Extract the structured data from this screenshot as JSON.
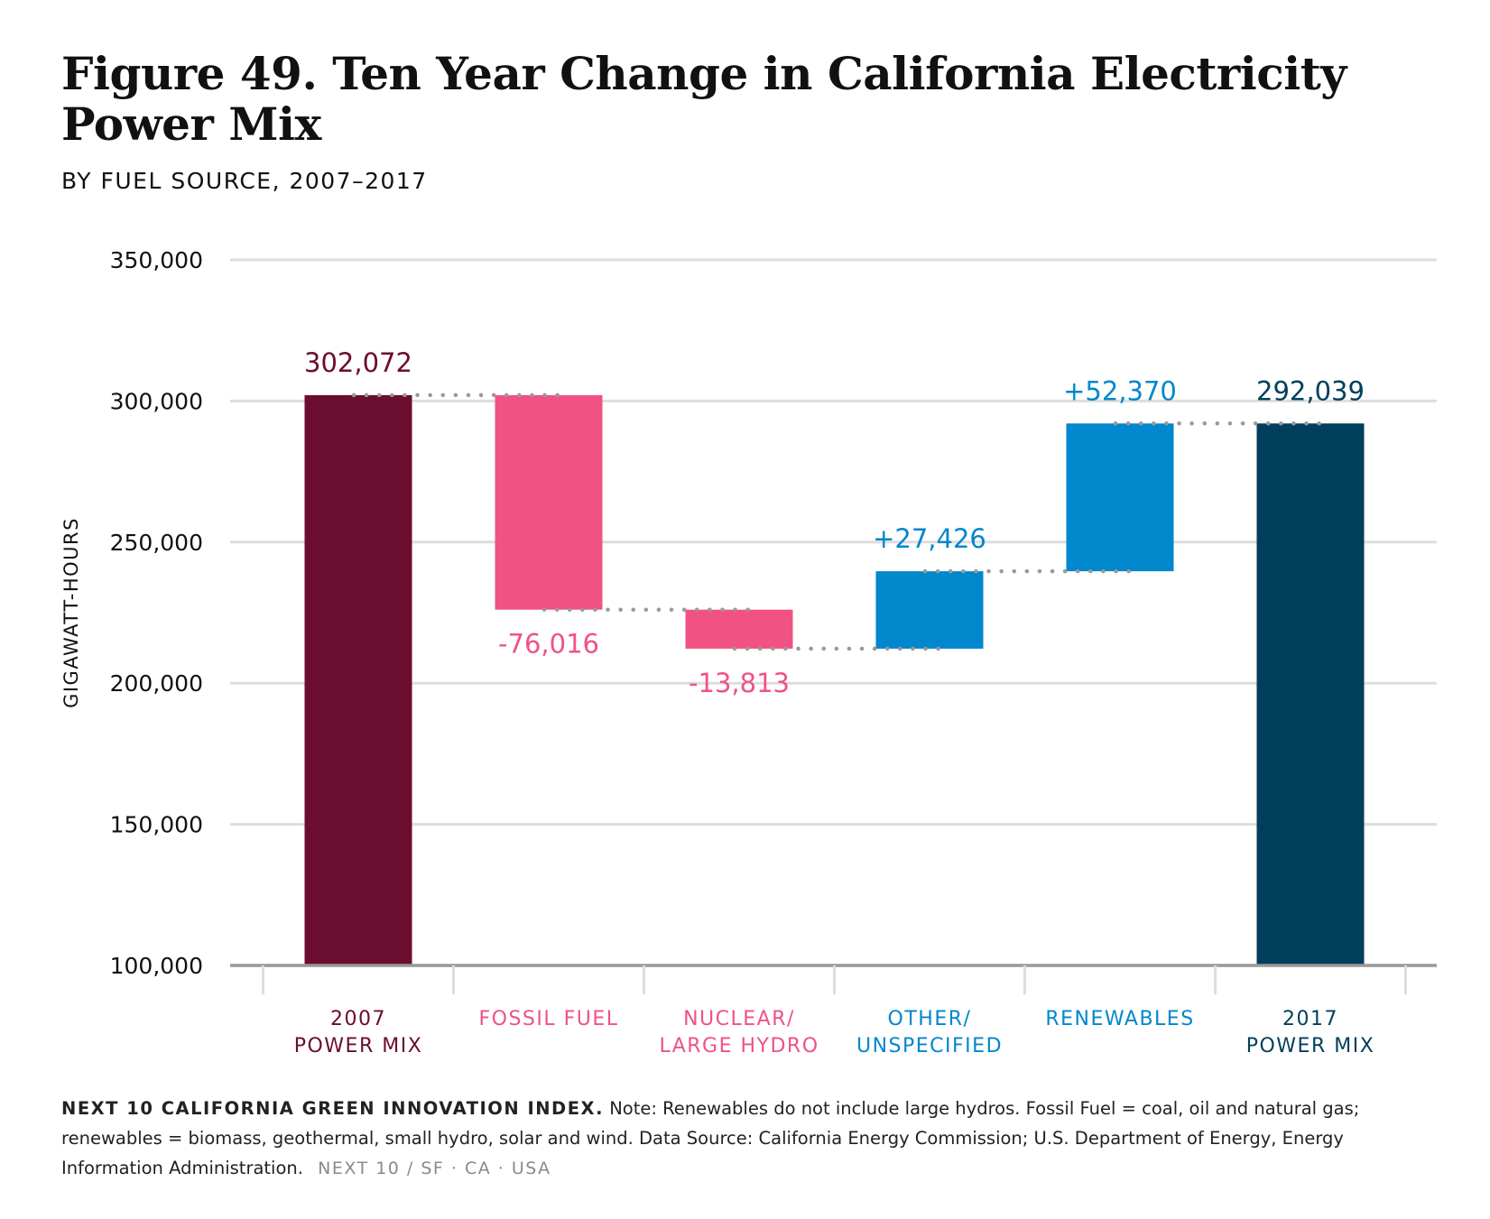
{
  "header": {
    "title": "Figure 49. Ten Year Change in California Electricity Power Mix",
    "subtitle": "BY FUEL SOURCE, 2007–2017"
  },
  "chart_data": {
    "type": "waterfall",
    "ylabel": "GIGAWATT-HOURS",
    "ylim": [
      100000,
      350000
    ],
    "yticks": [
      100000,
      150000,
      200000,
      250000,
      300000,
      350000
    ],
    "ytick_labels": [
      "100,000",
      "150,000",
      "200,000",
      "250,000",
      "300,000",
      "350,000"
    ],
    "grid": true,
    "categories": [
      {
        "label_lines": [
          "2007",
          "POWER MIX"
        ],
        "kind": "total",
        "start": 0,
        "end": 302072,
        "value_label": "302,072",
        "label_pos": "above",
        "color": "#6b0d2f"
      },
      {
        "label_lines": [
          "FOSSIL FUEL"
        ],
        "kind": "change",
        "start": 302072,
        "end": 226056,
        "value_label": "-76,016",
        "label_pos": "below",
        "color": "#f05283"
      },
      {
        "label_lines": [
          "NUCLEAR/",
          "LARGE HYDRO"
        ],
        "kind": "change",
        "start": 226056,
        "end": 212243,
        "value_label": "-13,813",
        "label_pos": "below",
        "color": "#f05283"
      },
      {
        "label_lines": [
          "OTHER/",
          "UNSPECIFIED"
        ],
        "kind": "change",
        "start": 212243,
        "end": 239669,
        "value_label": "+27,426",
        "label_pos": "above",
        "color": "#0087cc"
      },
      {
        "label_lines": [
          "RENEWABLES"
        ],
        "kind": "change",
        "start": 239669,
        "end": 292039,
        "value_label": "+52,370",
        "label_pos": "above",
        "color": "#0087cc"
      },
      {
        "label_lines": [
          "2017",
          "POWER MIX"
        ],
        "kind": "total",
        "start": 0,
        "end": 292039,
        "value_label": "292,039",
        "label_pos": "above",
        "color": "#003f5c"
      }
    ],
    "connector_color": "#9a9a9a",
    "grid_color": "#dddddd",
    "axis_color": "#999999"
  },
  "footer": {
    "brand": "NEXT 10 CALIFORNIA GREEN INNOVATION INDEX.",
    "note": "Note: Renewables do not include large hydros. Fossil Fuel = coal, oil and natural gas; renewables = biomass, geothermal, small hydro, solar and wind. Data Source: California Energy Commission; U.S. Department of Energy, Energy Information Administration.",
    "tag": "NEXT 10  /  SF · CA · USA"
  }
}
